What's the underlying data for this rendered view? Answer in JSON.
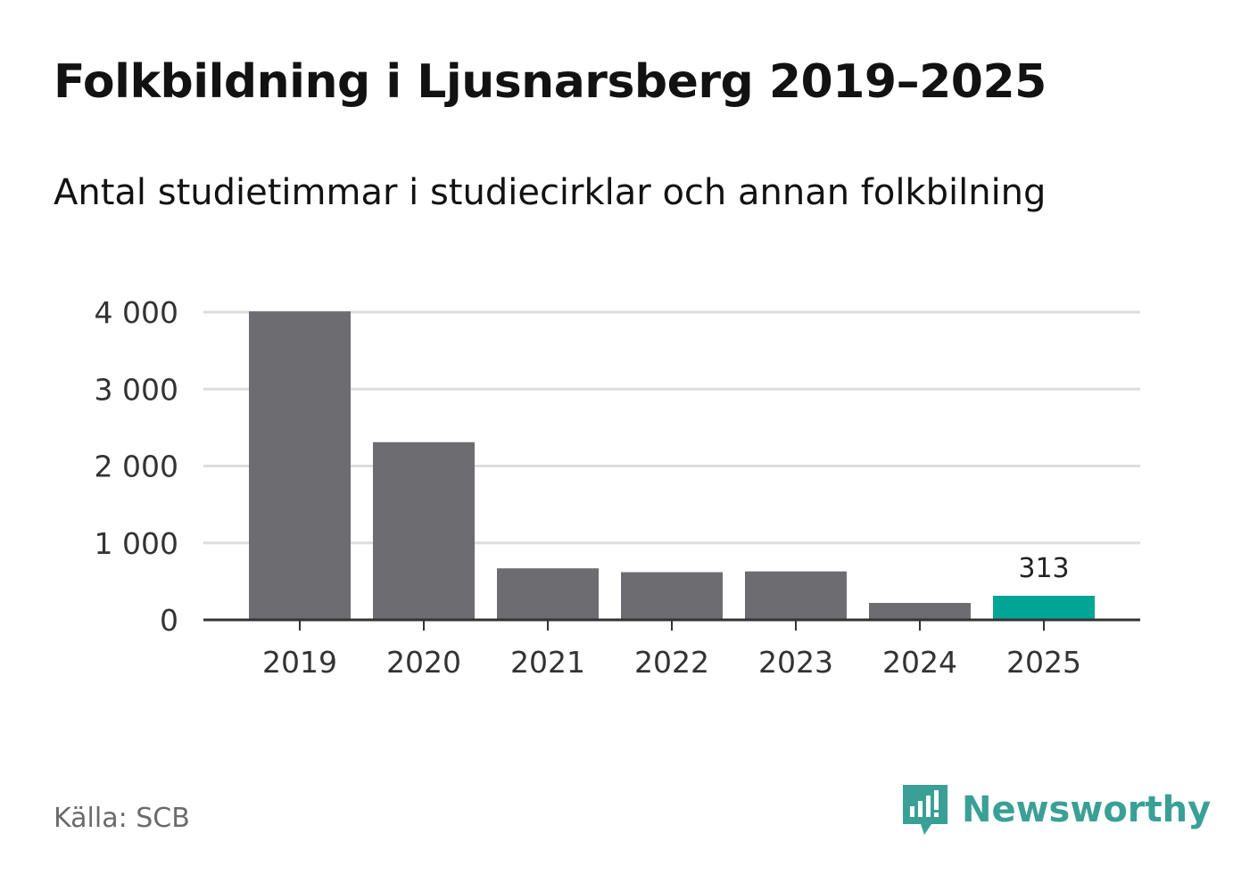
{
  "title": "Folkbildning i Ljusnarsberg 2019–2025",
  "subtitle": "Antal studietimmar i studiecirklar och annan folkbilning",
  "source": "Källa: SCB",
  "brand": {
    "name": "Newsworthy",
    "icon": "newsworthy-logo-icon"
  },
  "colors": {
    "bar": "#6d6c71",
    "highlight": "#00a596",
    "grid": "#dddddd",
    "axis": "#333333"
  },
  "chart_data": {
    "type": "bar",
    "categories": [
      "2019",
      "2020",
      "2021",
      "2022",
      "2023",
      "2024",
      "2025"
    ],
    "values": [
      4010,
      2310,
      670,
      620,
      630,
      220,
      313
    ],
    "highlight_index": 6,
    "data_labels": [
      {
        "index": 6,
        "text": "313"
      }
    ],
    "ylim": [
      0,
      4000
    ],
    "yticks": [
      0,
      1000,
      2000,
      3000,
      4000
    ],
    "ytick_labels": [
      "0",
      "1 000",
      "2 000",
      "3 000",
      "4 000"
    ],
    "grid": true,
    "xlabel": "",
    "ylabel": ""
  }
}
